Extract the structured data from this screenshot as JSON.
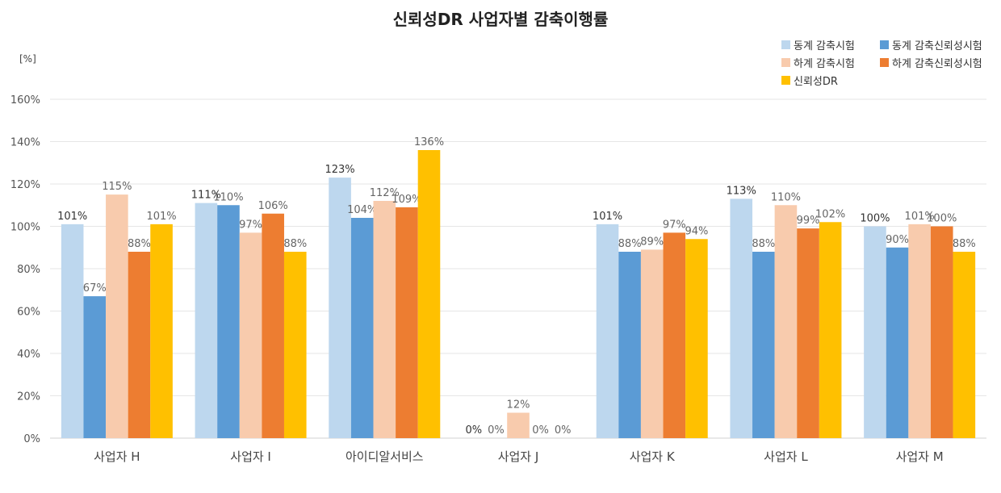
{
  "chart_data": {
    "type": "bar",
    "title": "신뢰성DR 사업자별 감축이행률",
    "ylabel": "[%]",
    "xlabel": "",
    "ylim": [
      0,
      160
    ],
    "yticks": [
      0,
      20,
      40,
      60,
      80,
      100,
      120,
      140,
      160
    ],
    "ytick_labels": [
      "0%",
      "20%",
      "40%",
      "60%",
      "80%",
      "100%",
      "120%",
      "140%",
      "160%"
    ],
    "grid": true,
    "legend_position": "top-right",
    "categories": [
      "사업자 H",
      "사업자 I",
      "아이디알서비스",
      "사업자 J",
      "사업자 K",
      "사업자 L",
      "사업자 M"
    ],
    "series": [
      {
        "name": "동계 감축시험",
        "color": "#bdd7ee",
        "values": [
          101,
          111,
          123,
          0,
          101,
          113,
          100
        ]
      },
      {
        "name": "동계 감축신뢰성시험",
        "color": "#5b9bd5",
        "values": [
          67,
          110,
          104,
          0,
          88,
          88,
          90
        ]
      },
      {
        "name": "하계 감축시험",
        "color": "#f8cbad",
        "values": [
          115,
          97,
          112,
          12,
          89,
          110,
          101
        ]
      },
      {
        "name": "하계 감축신뢰성시험",
        "color": "#ed7d31",
        "values": [
          88,
          106,
          109,
          0,
          97,
          99,
          100
        ]
      },
      {
        "name": "신뢰성DR",
        "color": "#ffc000",
        "values": [
          101,
          88,
          136,
          0,
          94,
          102,
          88
        ]
      }
    ]
  }
}
